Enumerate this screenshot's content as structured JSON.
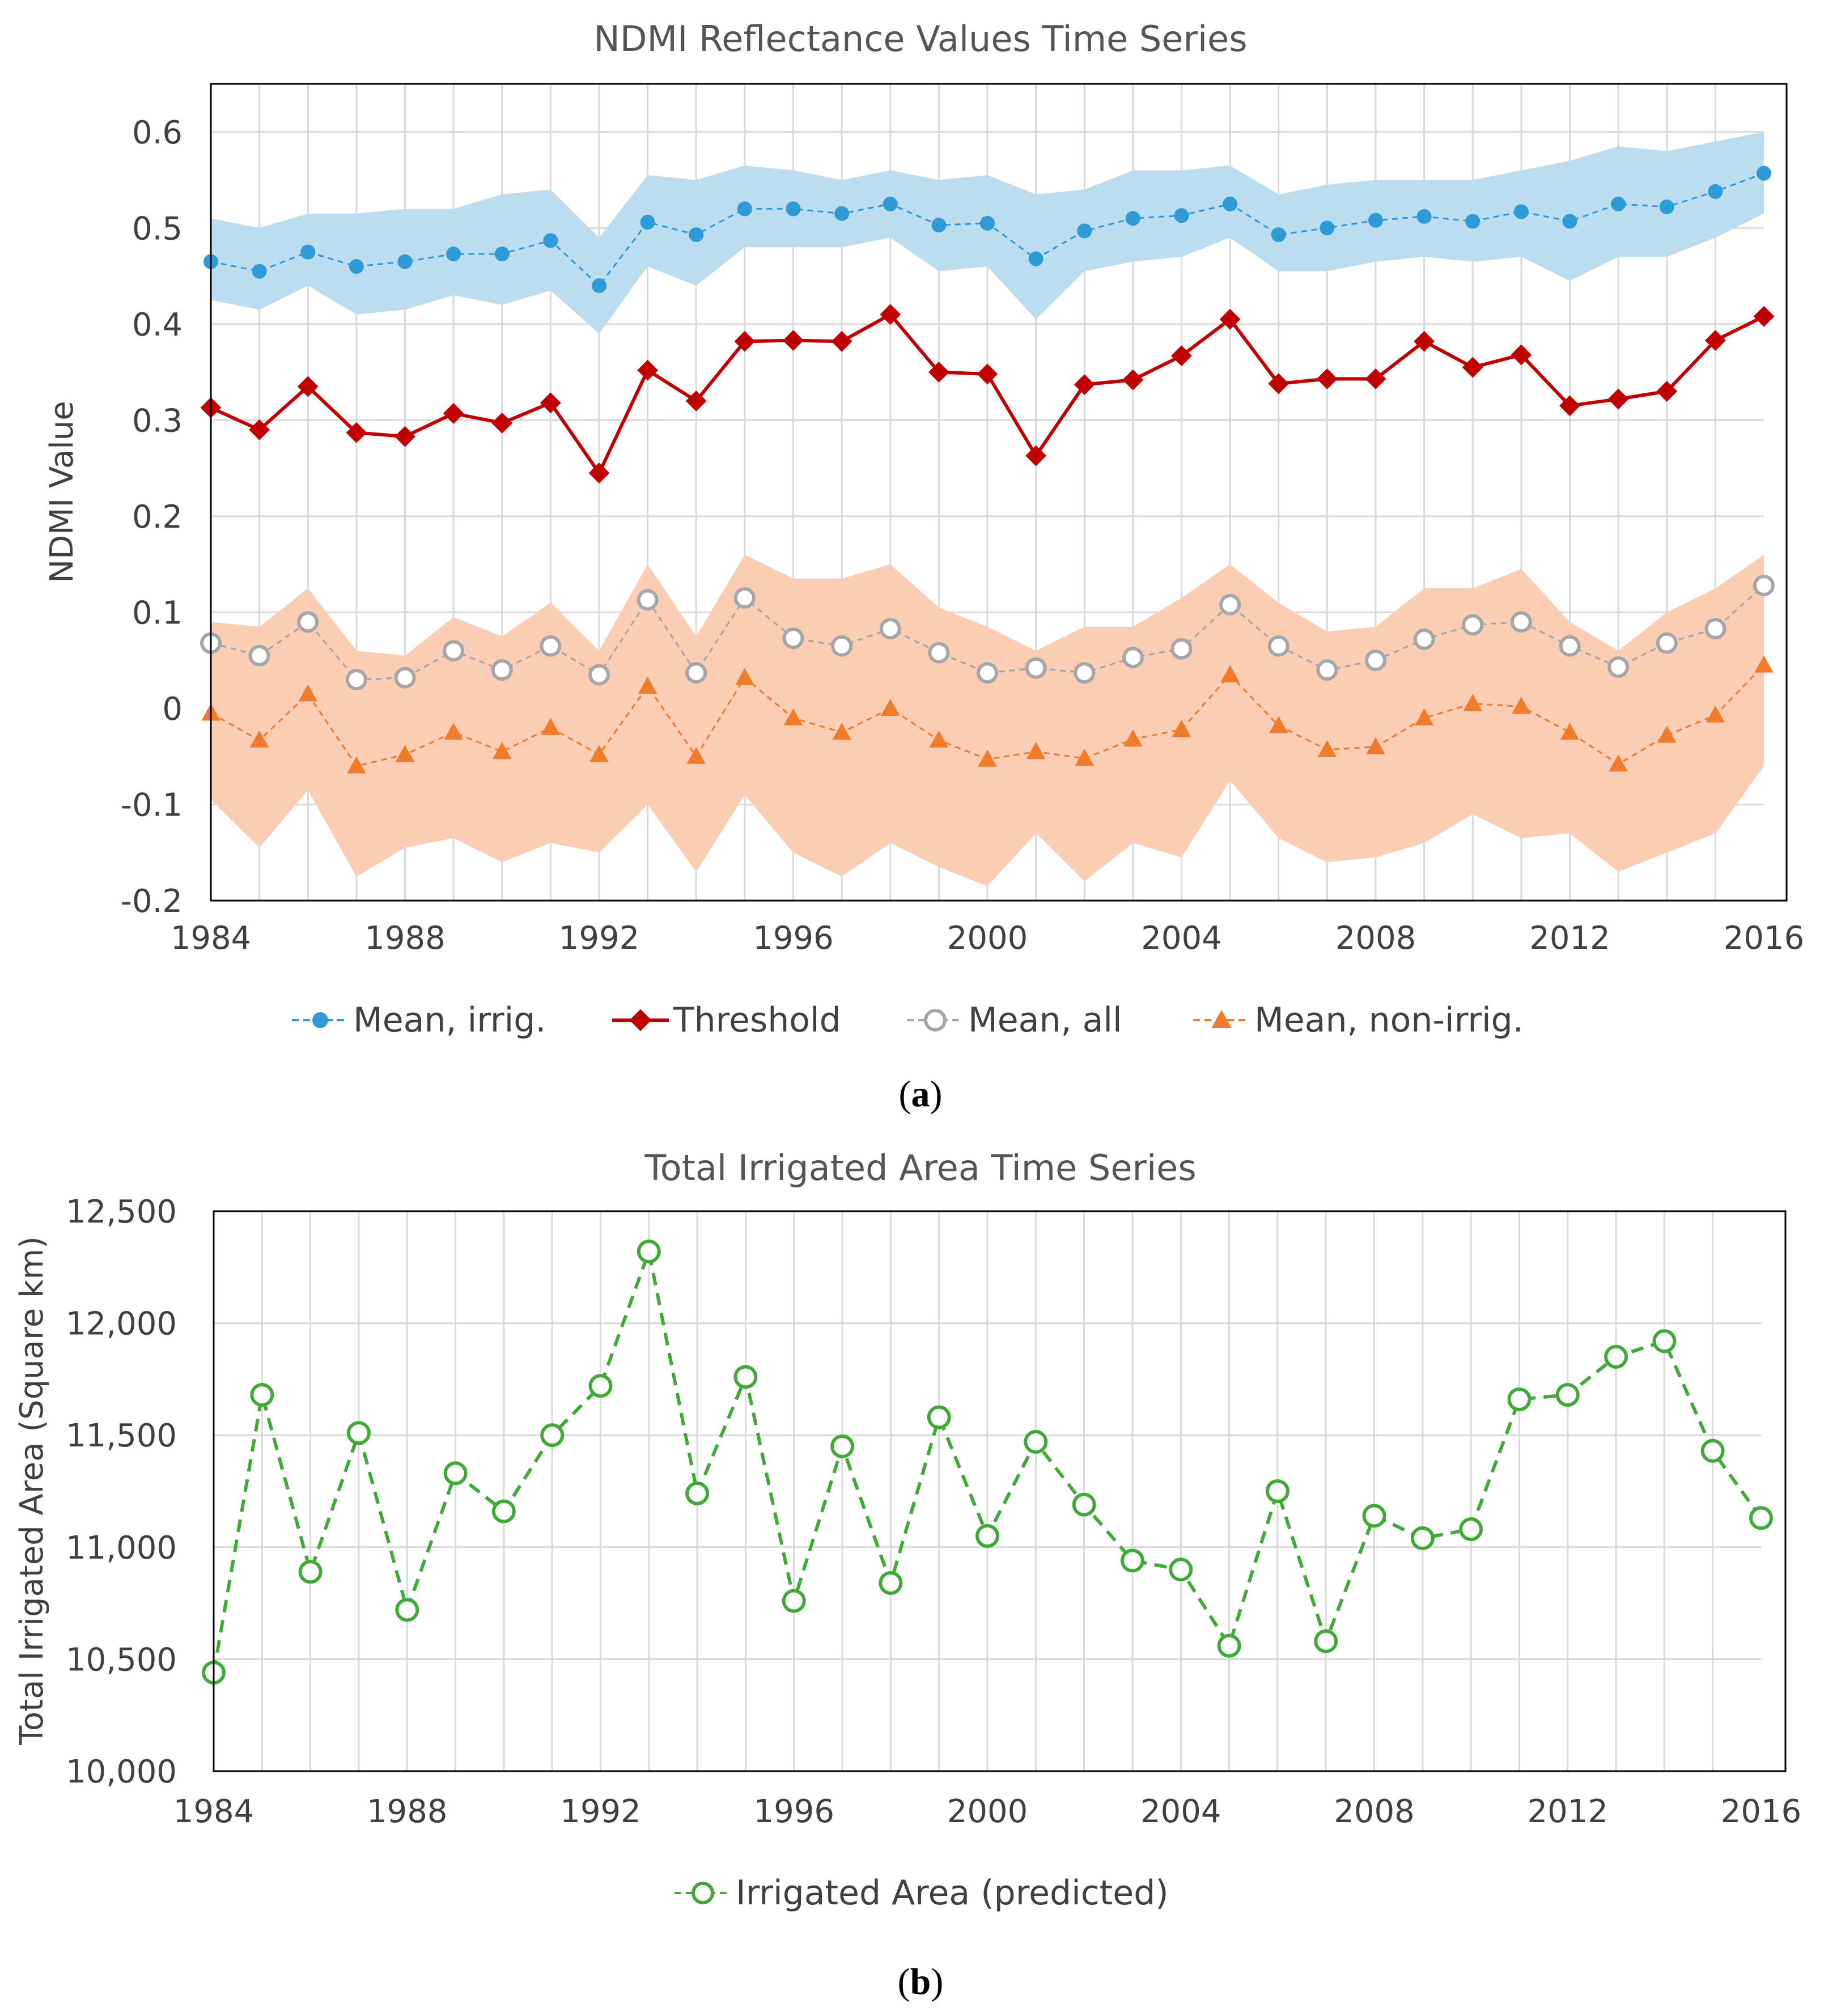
{
  "figure": {
    "caption_a": {
      "open": "(",
      "letter": "a",
      "close": ")"
    },
    "caption_b": {
      "open": "(",
      "letter": "b",
      "close": ")"
    }
  },
  "chart_data": [
    {
      "type": "line",
      "title": "NDMI Reflectance Values Time Series",
      "xlabel": "",
      "ylabel": "NDMI Value",
      "xlim": [
        1984,
        2016
      ],
      "ylim": [
        -0.2,
        0.65
      ],
      "y_ticks": [
        -0.2,
        -0.1,
        0,
        0.1,
        0.2,
        0.3,
        0.4,
        0.5,
        0.6
      ],
      "y_tick_labels": [
        "-0.2",
        "-0.1",
        "0",
        "0.1",
        "0.2",
        "0.3",
        "0.4",
        "0.5",
        "0.6"
      ],
      "x_ticks": [
        1984,
        1988,
        1992,
        1996,
        2000,
        2004,
        2008,
        2012,
        2016
      ],
      "x_tick_labels": [
        "1984",
        "1988",
        "1992",
        "1996",
        "2000",
        "2004",
        "2008",
        "2012",
        "2016"
      ],
      "grid": true,
      "legend_position": "bottom",
      "x": [
        1984,
        1985,
        1986,
        1987,
        1988,
        1989,
        1990,
        1991,
        1992,
        1993,
        1994,
        1995,
        1996,
        1997,
        1998,
        1999,
        2000,
        2001,
        2002,
        2003,
        2004,
        2005,
        2006,
        2007,
        2008,
        2009,
        2010,
        2011,
        2012,
        2013,
        2014,
        2015,
        2016
      ],
      "bands": [
        {
          "name": "Irrigated range",
          "color": "#bcdcf0",
          "upper": [
            0.51,
            0.5,
            0.515,
            0.515,
            0.52,
            0.52,
            0.535,
            0.54,
            0.49,
            0.555,
            0.55,
            0.565,
            0.56,
            0.55,
            0.56,
            0.55,
            0.555,
            0.535,
            0.54,
            0.56,
            0.56,
            0.565,
            0.535,
            0.545,
            0.55,
            0.55,
            0.55,
            0.56,
            0.57,
            0.585,
            0.58,
            0.59,
            0.6
          ],
          "lower": [
            0.425,
            0.415,
            0.44,
            0.41,
            0.415,
            0.43,
            0.42,
            0.435,
            0.39,
            0.46,
            0.44,
            0.48,
            0.48,
            0.48,
            0.49,
            0.455,
            0.46,
            0.405,
            0.455,
            0.465,
            0.47,
            0.49,
            0.455,
            0.455,
            0.465,
            0.47,
            0.465,
            0.47,
            0.445,
            0.47,
            0.47,
            0.49,
            0.515
          ]
        },
        {
          "name": "Non-irrigated range",
          "color": "#fbcdb4",
          "upper": [
            0.09,
            0.085,
            0.125,
            0.06,
            0.055,
            0.095,
            0.075,
            0.11,
            0.06,
            0.15,
            0.075,
            0.16,
            0.135,
            0.135,
            0.15,
            0.105,
            0.085,
            0.06,
            0.085,
            0.085,
            0.115,
            0.15,
            0.11,
            0.08,
            0.085,
            0.125,
            0.125,
            0.145,
            0.09,
            0.06,
            0.1,
            0.125,
            0.16
          ],
          "lower": [
            -0.095,
            -0.145,
            -0.085,
            -0.175,
            -0.145,
            -0.135,
            -0.16,
            -0.14,
            -0.15,
            -0.1,
            -0.17,
            -0.09,
            -0.15,
            -0.175,
            -0.14,
            -0.165,
            -0.185,
            -0.13,
            -0.18,
            -0.14,
            -0.155,
            -0.075,
            -0.135,
            -0.16,
            -0.155,
            -0.14,
            -0.11,
            -0.135,
            -0.13,
            -0.17,
            -0.15,
            -0.13,
            -0.06
          ]
        }
      ],
      "series": [
        {
          "name": "Mean, irrig.",
          "color": "#2e9bd6",
          "style": "dashed",
          "marker": "circle-filled",
          "values": [
            0.465,
            0.455,
            0.475,
            0.46,
            0.465,
            0.473,
            0.473,
            0.487,
            0.44,
            0.506,
            0.493,
            0.52,
            0.52,
            0.515,
            0.525,
            0.503,
            0.505,
            0.468,
            0.497,
            0.51,
            0.513,
            0.525,
            0.493,
            0.5,
            0.508,
            0.512,
            0.507,
            0.517,
            0.507,
            0.525,
            0.522,
            0.538,
            0.557
          ]
        },
        {
          "name": "Threshold",
          "color": "#c00000",
          "style": "solid",
          "marker": "diamond",
          "values": [
            0.313,
            0.29,
            0.335,
            0.287,
            0.283,
            0.307,
            0.297,
            0.318,
            0.245,
            0.352,
            0.32,
            0.382,
            0.383,
            0.382,
            0.41,
            0.35,
            0.348,
            0.263,
            0.337,
            0.342,
            0.367,
            0.405,
            0.338,
            0.343,
            0.343,
            0.382,
            0.355,
            0.368,
            0.315,
            0.322,
            0.33,
            0.383,
            0.408
          ]
        },
        {
          "name": "Mean, all",
          "color": "#a6a6a6",
          "style": "dashed",
          "marker": "circle-open",
          "values": [
            0.068,
            0.055,
            0.09,
            0.03,
            0.032,
            0.06,
            0.04,
            0.065,
            0.035,
            0.113,
            0.037,
            0.115,
            0.073,
            0.065,
            0.083,
            0.058,
            0.037,
            0.042,
            0.037,
            0.053,
            0.062,
            0.108,
            0.065,
            0.04,
            0.05,
            0.072,
            0.087,
            0.09,
            0.065,
            0.043,
            0.068,
            0.083,
            0.128
          ]
        },
        {
          "name": "Mean, non-irrig.",
          "color": "#f07c2a",
          "style": "dashed",
          "marker": "triangle",
          "values": [
            -0.005,
            -0.033,
            0.015,
            -0.06,
            -0.048,
            -0.025,
            -0.045,
            -0.02,
            -0.048,
            0.023,
            -0.05,
            0.032,
            -0.01,
            -0.025,
            0.0,
            -0.033,
            -0.053,
            -0.045,
            -0.052,
            -0.032,
            -0.022,
            0.035,
            -0.018,
            -0.043,
            -0.04,
            -0.01,
            0.005,
            0.002,
            -0.025,
            -0.058,
            -0.028,
            -0.007,
            0.045
          ]
        }
      ]
    },
    {
      "type": "line",
      "title": "Total Irrigated Area Time Series",
      "xlabel": "",
      "ylabel": "Total Irrigated Area (Square km)",
      "xlim": [
        1984,
        2016
      ],
      "ylim": [
        10000,
        12500
      ],
      "y_ticks": [
        10000,
        10500,
        11000,
        11500,
        12000,
        12500
      ],
      "y_tick_labels": [
        "10,000",
        "10,500",
        "11,000",
        "11,500",
        "12,000",
        "12,500"
      ],
      "x_ticks": [
        1984,
        1988,
        1992,
        1996,
        2000,
        2004,
        2008,
        2012,
        2016
      ],
      "x_tick_labels": [
        "1984",
        "1988",
        "1992",
        "1996",
        "2000",
        "2004",
        "2008",
        "2012",
        "2016"
      ],
      "grid": true,
      "legend_position": "bottom",
      "x": [
        1984,
        1985,
        1986,
        1987,
        1988,
        1989,
        1990,
        1991,
        1992,
        1993,
        1994,
        1995,
        1996,
        1997,
        1998,
        1999,
        2000,
        2001,
        2002,
        2003,
        2004,
        2005,
        2006,
        2007,
        2008,
        2009,
        2010,
        2011,
        2012,
        2013,
        2014,
        2015,
        2016
      ],
      "series": [
        {
          "name": "Irrigated Area (predicted)",
          "color": "#3faa35",
          "style": "dashed",
          "marker": "circle-open",
          "values": [
            10440,
            11680,
            10890,
            11510,
            10720,
            11330,
            11160,
            11500,
            11720,
            12320,
            11240,
            11760,
            10760,
            11450,
            10840,
            11580,
            11050,
            11470,
            11190,
            10940,
            10900,
            10560,
            11250,
            10580,
            11140,
            11040,
            11080,
            11660,
            11680,
            11850,
            11920,
            11430,
            11130
          ]
        }
      ]
    }
  ]
}
